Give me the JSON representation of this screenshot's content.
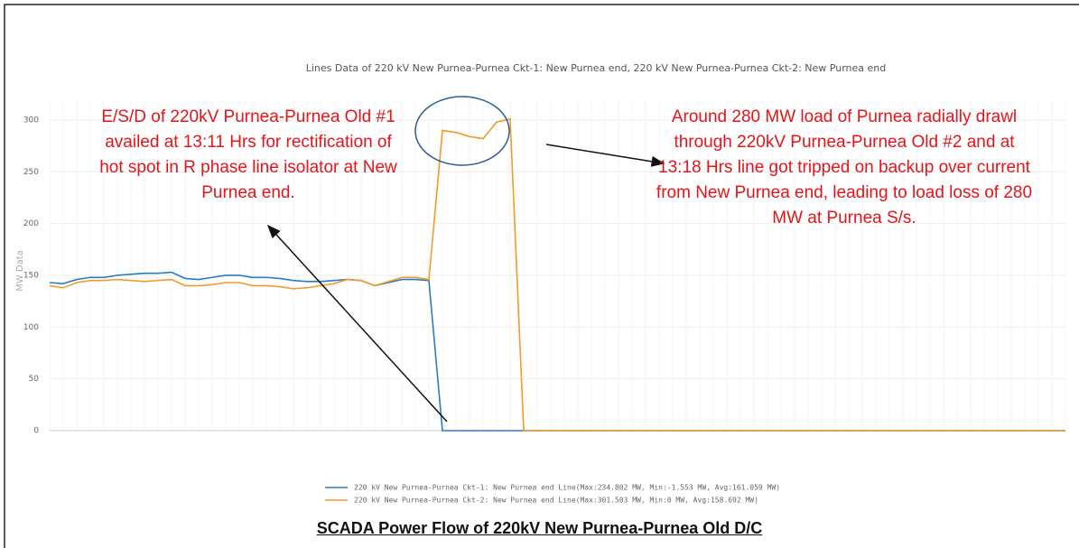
{
  "chart_data": {
    "type": "line",
    "title": "Lines Data of 220 kV New Purnea-Purnea Ckt-1:  New Purnea end, 220 kV New Purnea-Purnea Ckt-2:  New Purnea end",
    "y_label": "MW Data",
    "categories": [
      null,
      null,
      null,
      null,
      null,
      null,
      null,
      null,
      null,
      null,
      null,
      null,
      null,
      null,
      null,
      null,
      null,
      null,
      null,
      null,
      null,
      null,
      null,
      null,
      null,
      null,
      null,
      null,
      null,
      null,
      null,
      null,
      null,
      null,
      null,
      null,
      null,
      null,
      null,
      null,
      null,
      null,
      null,
      null,
      null,
      null,
      null,
      null,
      null,
      null,
      null,
      null,
      null,
      null,
      null,
      null,
      null,
      null,
      null,
      null,
      null,
      null,
      null,
      null,
      null,
      null,
      null,
      null,
      null,
      null,
      null,
      null,
      null,
      null,
      null,
      null
    ],
    "ylim": [
      0,
      320
    ],
    "yticks": [
      0,
      50,
      100,
      150,
      200,
      250,
      300
    ],
    "grid": true,
    "series": [
      {
        "name": "220 kV New Purnea-Purnea Ckt-1:  New Purnea end Line(Max:234.802 MW, Min:-1.553 MW, Avg:161.059 MW)",
        "color": "#2e7bbf",
        "values": [
          143,
          142,
          146,
          148,
          148,
          150,
          151,
          152,
          152,
          153,
          147,
          146,
          148,
          150,
          150,
          148,
          148,
          147,
          145,
          144,
          144,
          145,
          146,
          145,
          140,
          143,
          146,
          146,
          145,
          0,
          0,
          0,
          0,
          0,
          0,
          0,
          0,
          0,
          0,
          0,
          0,
          0,
          0,
          0,
          0,
          0,
          0,
          0,
          0,
          0,
          0,
          0,
          0,
          0,
          0,
          0,
          0,
          0,
          0,
          0,
          0,
          0,
          0,
          0,
          0,
          0,
          0,
          0,
          0,
          0,
          0,
          0,
          0,
          0,
          0,
          0
        ]
      },
      {
        "name": "220 kV New Purnea-Purnea Ckt-2:  New Purnea end Line(Max:301.503 MW, Min:0 MW, Avg:158.692 MW)",
        "color": "#f39a2b",
        "values": [
          140,
          138,
          143,
          145,
          145,
          146,
          145,
          144,
          145,
          146,
          140,
          140,
          141,
          143,
          143,
          140,
          140,
          139,
          137,
          138,
          140,
          142,
          146,
          145,
          140,
          144,
          148,
          148,
          146,
          290,
          288,
          284,
          282,
          298,
          301,
          0,
          0,
          0,
          0,
          0,
          0,
          0,
          0,
          0,
          0,
          0,
          0,
          0,
          0,
          0,
          0,
          0,
          0,
          0,
          0,
          0,
          0,
          0,
          0,
          0,
          0,
          0,
          0,
          0,
          0,
          0,
          0,
          0,
          0,
          0,
          0,
          0,
          0,
          0,
          0,
          0
        ]
      }
    ],
    "annotations": [
      "E/S/D of 220kV Purnea-Purnea Old #1 availed at 13:11 Hrs for rectification of hot spot in R phase line isolator at New Purnea end.",
      "Around 280 MW load of Purnea radially drawl through 220kV Purnea-Purnea Old #2 and at 13:18 Hrs line got tripped on backup over current from New Purnea end, leading to load loss of 280 MW at Purnea S/s."
    ],
    "caption": "SCADA Power Flow of 220kV New Purnea-Purnea Old D/C"
  }
}
